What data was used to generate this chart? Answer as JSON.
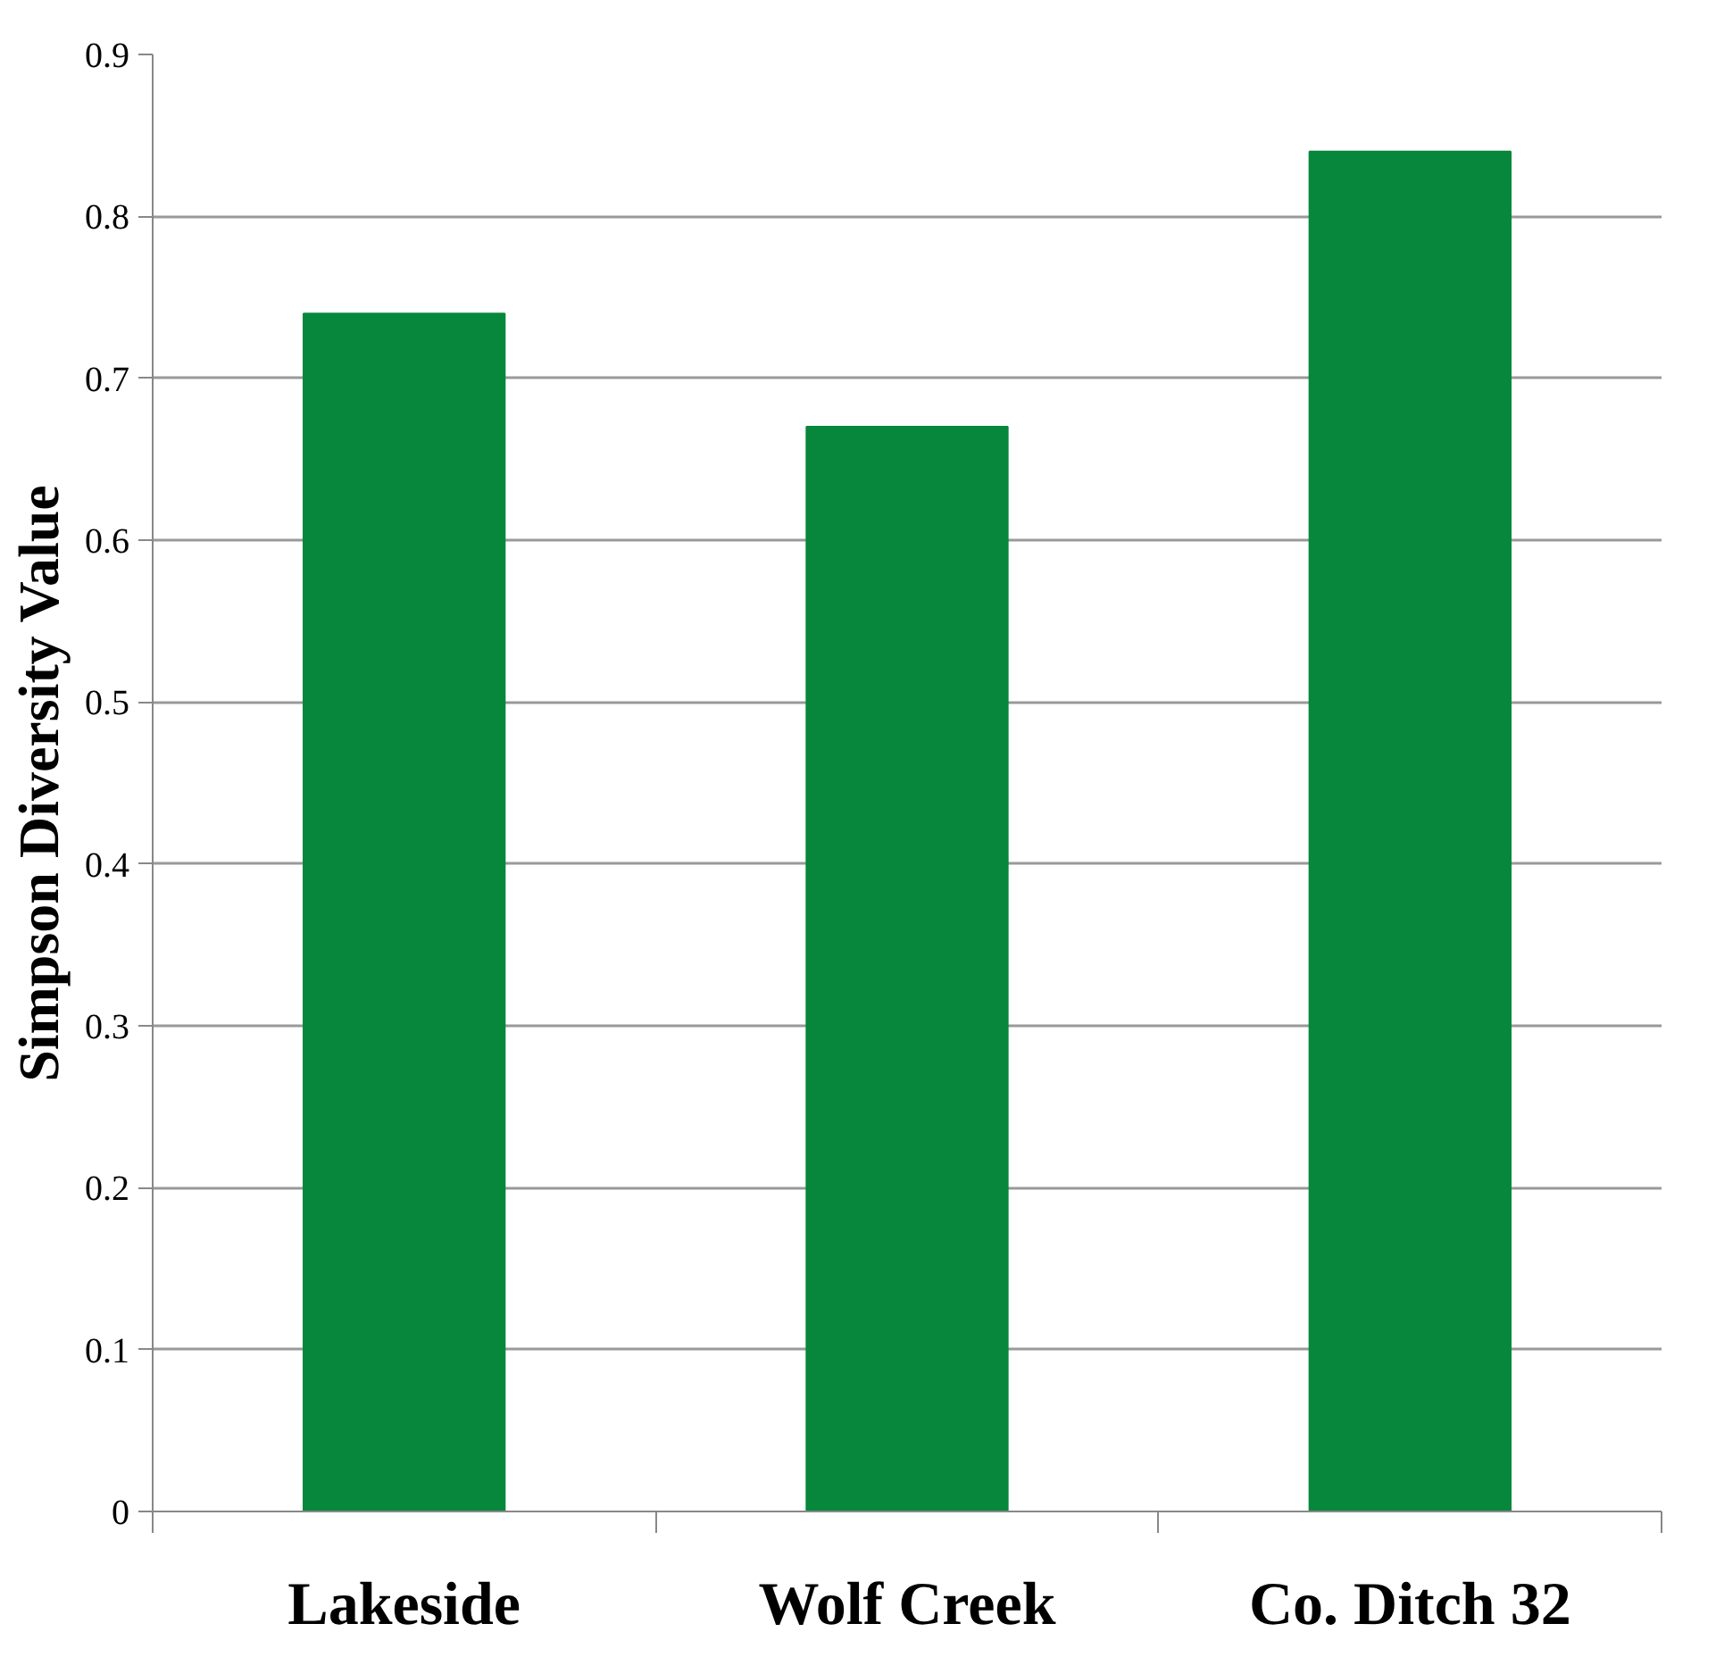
{
  "chart_data": {
    "type": "bar",
    "ylabel": "Simpson Diversity Value",
    "categories": [
      "Lakeside",
      "Wolf Creek",
      "Co. Ditch 32"
    ],
    "values": [
      0.74,
      0.67,
      0.84
    ],
    "color": "#06873b",
    "ylim": [
      0,
      0.9
    ],
    "yticks": [
      0,
      0.1,
      0.2,
      0.3,
      0.4,
      0.5,
      0.6,
      0.7,
      0.8,
      0.9
    ],
    "grid": "y"
  }
}
